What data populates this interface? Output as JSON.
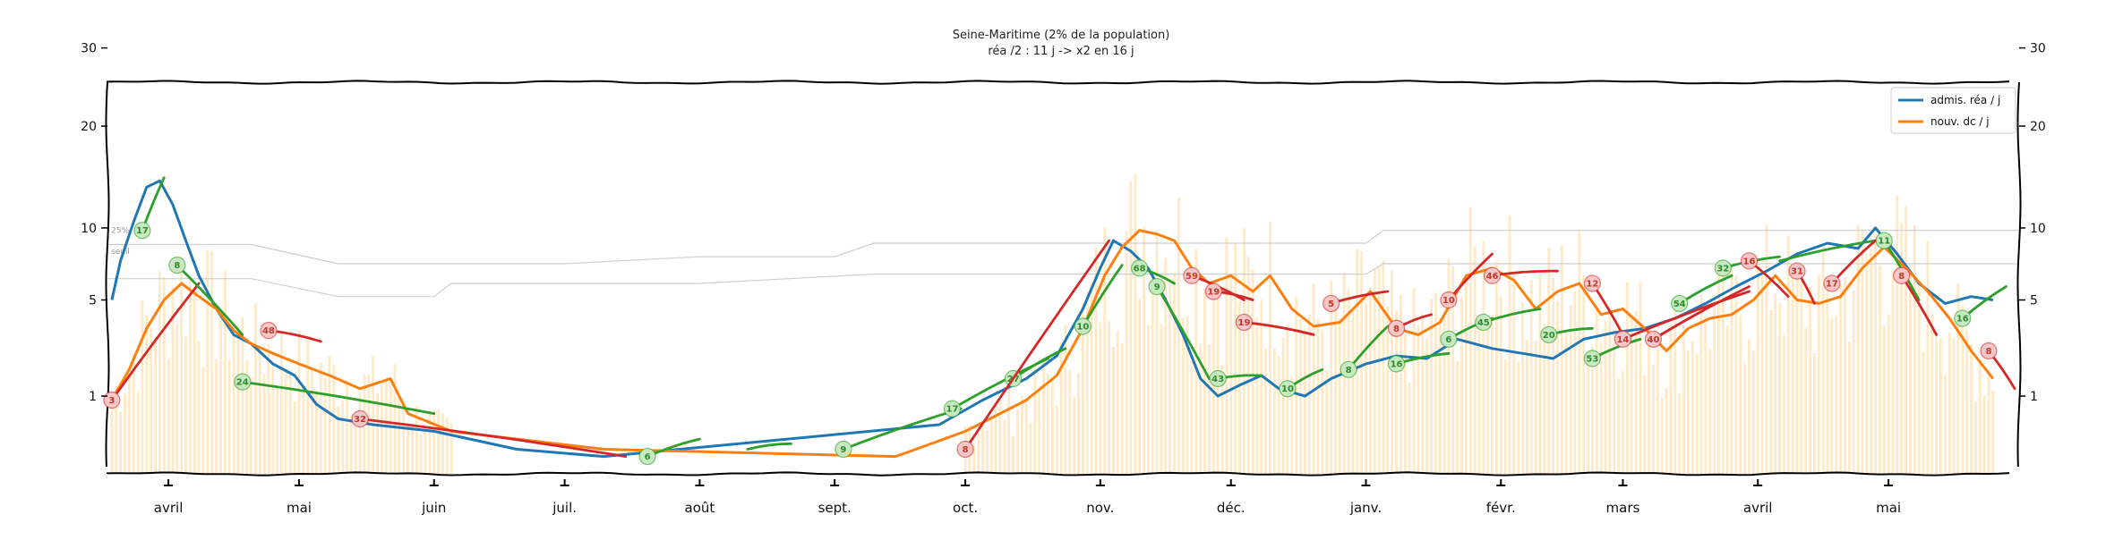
{
  "chart_data": {
    "type": "line",
    "title": "Seine-Maritime (2% de la population)",
    "subtitle": "réa /2 : 11 j -> x2 en 16 j",
    "xlabel": "",
    "ylabel": "",
    "y_scale": "sqrt",
    "ylim": [
      0,
      32
    ],
    "y_ticks": [
      1,
      5,
      10,
      20,
      30
    ],
    "grid": false,
    "legend_position": "top-right",
    "x_range": [
      "2020-03-18",
      "2021-05-31"
    ],
    "month_ticks": [
      {
        "label": "avril",
        "date": "2020-04-01"
      },
      {
        "label": "mai",
        "date": "2020-05-01"
      },
      {
        "label": "juin",
        "date": "2020-06-01"
      },
      {
        "label": "juil.",
        "date": "2020-07-01"
      },
      {
        "label": "août",
        "date": "2020-08-01"
      },
      {
        "label": "sept.",
        "date": "2020-09-01"
      },
      {
        "label": "oct.",
        "date": "2020-10-01"
      },
      {
        "label": "nov.",
        "date": "2020-11-01"
      },
      {
        "label": "déc.",
        "date": "2020-12-01"
      },
      {
        "label": "janv.",
        "date": "2021-01-01"
      },
      {
        "label": "févr.",
        "date": "2021-02-01"
      },
      {
        "label": "mars",
        "date": "2021-03-01"
      },
      {
        "label": "avril",
        "date": "2021-04-01"
      },
      {
        "label": "mai",
        "date": "2021-05-01"
      }
    ],
    "series": [
      {
        "name": "admis. réa / j",
        "color": "#1f77b4",
        "points": [
          [
            "2020-03-19",
            5.0
          ],
          [
            "2020-03-21",
            7.5
          ],
          [
            "2020-03-24",
            10.5
          ],
          [
            "2020-03-27",
            13.6
          ],
          [
            "2020-03-30",
            14.2
          ],
          [
            "2020-04-02",
            12.0
          ],
          [
            "2020-04-05",
            9.0
          ],
          [
            "2020-04-08",
            6.5
          ],
          [
            "2020-04-12",
            4.5
          ],
          [
            "2020-04-16",
            3.2
          ],
          [
            "2020-04-20",
            2.8
          ],
          [
            "2020-04-25",
            2.0
          ],
          [
            "2020-04-30",
            1.6
          ],
          [
            "2020-05-05",
            0.8
          ],
          [
            "2020-05-10",
            0.5
          ],
          [
            "2020-05-18",
            0.4
          ],
          [
            "2020-06-01",
            0.3
          ],
          [
            "2020-06-20",
            0.1
          ],
          [
            "2020-07-10",
            0.05
          ],
          [
            "2020-09-25",
            0.4
          ],
          [
            "2020-10-05",
            0.9
          ],
          [
            "2020-10-15",
            1.5
          ],
          [
            "2020-10-22",
            2.3
          ],
          [
            "2020-10-28",
            4.5
          ],
          [
            "2020-11-01",
            7.0
          ],
          [
            "2020-11-04",
            9.0
          ],
          [
            "2020-11-08",
            8.2
          ],
          [
            "2020-11-12",
            7.0
          ],
          [
            "2020-11-16",
            5.0
          ],
          [
            "2020-11-20",
            3.2
          ],
          [
            "2020-11-24",
            1.5
          ],
          [
            "2020-11-28",
            1.0
          ],
          [
            "2020-12-03",
            1.3
          ],
          [
            "2020-12-08",
            1.6
          ],
          [
            "2020-12-12",
            1.2
          ],
          [
            "2020-12-18",
            1.0
          ],
          [
            "2020-12-24",
            1.5
          ],
          [
            "2021-01-01",
            2.0
          ],
          [
            "2021-01-08",
            2.3
          ],
          [
            "2021-01-15",
            2.2
          ],
          [
            "2021-01-22",
            3.0
          ],
          [
            "2021-01-30",
            2.6
          ],
          [
            "2021-02-06",
            2.4
          ],
          [
            "2021-02-13",
            2.2
          ],
          [
            "2021-02-20",
            3.0
          ],
          [
            "2021-02-27",
            3.3
          ],
          [
            "2021-03-06",
            3.5
          ],
          [
            "2021-03-13",
            4.0
          ],
          [
            "2021-03-20",
            4.8
          ],
          [
            "2021-03-27",
            5.8
          ],
          [
            "2021-04-03",
            6.8
          ],
          [
            "2021-04-10",
            8.0
          ],
          [
            "2021-04-17",
            8.8
          ],
          [
            "2021-04-24",
            8.4
          ],
          [
            "2021-04-28",
            10.0
          ],
          [
            "2021-05-03",
            8.0
          ],
          [
            "2021-05-08",
            6.0
          ],
          [
            "2021-05-14",
            4.8
          ],
          [
            "2021-05-20",
            5.2
          ],
          [
            "2021-05-25",
            5.0
          ]
        ]
      },
      {
        "name": "nouv. dc / j",
        "color": "#ff7f0e",
        "points": [
          [
            "2020-03-19",
            0.9
          ],
          [
            "2020-03-23",
            1.8
          ],
          [
            "2020-03-27",
            3.5
          ],
          [
            "2020-03-31",
            5.0
          ],
          [
            "2020-04-04",
            6.0
          ],
          [
            "2020-04-08",
            5.2
          ],
          [
            "2020-04-12",
            4.5
          ],
          [
            "2020-04-16",
            3.4
          ],
          [
            "2020-04-20",
            2.8
          ],
          [
            "2020-04-25",
            2.4
          ],
          [
            "2020-05-01",
            2.0
          ],
          [
            "2020-05-08",
            1.6
          ],
          [
            "2020-05-15",
            1.2
          ],
          [
            "2020-05-22",
            1.5
          ],
          [
            "2020-05-26",
            0.6
          ],
          [
            "2020-06-05",
            0.3
          ],
          [
            "2020-06-20",
            0.2
          ],
          [
            "2020-07-10",
            0.1
          ],
          [
            "2020-09-15",
            0.05
          ],
          [
            "2020-10-01",
            0.3
          ],
          [
            "2020-10-15",
            0.9
          ],
          [
            "2020-10-22",
            1.6
          ],
          [
            "2020-10-28",
            3.5
          ],
          [
            "2020-11-02",
            6.5
          ],
          [
            "2020-11-06",
            8.5
          ],
          [
            "2020-11-10",
            9.8
          ],
          [
            "2020-11-14",
            9.5
          ],
          [
            "2020-11-18",
            9.0
          ],
          [
            "2020-11-22",
            7.0
          ],
          [
            "2020-11-26",
            6.0
          ],
          [
            "2020-12-01",
            6.5
          ],
          [
            "2020-12-06",
            5.5
          ],
          [
            "2020-12-10",
            6.5
          ],
          [
            "2020-12-15",
            4.5
          ],
          [
            "2020-12-20",
            3.6
          ],
          [
            "2020-12-26",
            3.8
          ],
          [
            "2021-01-02",
            5.5
          ],
          [
            "2021-01-08",
            3.5
          ],
          [
            "2021-01-13",
            3.2
          ],
          [
            "2021-01-18",
            3.8
          ],
          [
            "2021-01-24",
            6.5
          ],
          [
            "2021-01-30",
            7.0
          ],
          [
            "2021-02-04",
            6.2
          ],
          [
            "2021-02-09",
            4.5
          ],
          [
            "2021-02-14",
            5.5
          ],
          [
            "2021-02-19",
            6.0
          ],
          [
            "2021-02-24",
            4.2
          ],
          [
            "2021-03-01",
            4.5
          ],
          [
            "2021-03-06",
            3.5
          ],
          [
            "2021-03-11",
            2.5
          ],
          [
            "2021-03-16",
            3.5
          ],
          [
            "2021-03-21",
            4.0
          ],
          [
            "2021-03-26",
            4.2
          ],
          [
            "2021-03-31",
            5.0
          ],
          [
            "2021-04-05",
            6.5
          ],
          [
            "2021-04-10",
            5.0
          ],
          [
            "2021-04-15",
            4.8
          ],
          [
            "2021-04-20",
            5.2
          ],
          [
            "2021-04-25",
            7.0
          ],
          [
            "2021-04-30",
            8.5
          ],
          [
            "2021-05-05",
            7.0
          ],
          [
            "2021-05-10",
            5.5
          ],
          [
            "2021-05-15",
            4.0
          ],
          [
            "2021-05-20",
            2.5
          ],
          [
            "2021-05-25",
            1.5
          ]
        ]
      }
    ],
    "trend_segments": {
      "growing_color": "#d62728",
      "declining_color": "#2ca02c",
      "segments": [
        {
          "trend": "up",
          "from": [
            "2020-03-19",
            0.9
          ],
          "to": [
            "2020-04-08",
            6.0
          ],
          "label": "3"
        },
        {
          "trend": "down",
          "from": [
            "2020-03-26",
            9.8
          ],
          "to": [
            "2020-03-31",
            14.5
          ],
          "label": "17"
        },
        {
          "trend": "down",
          "from": [
            "2020-04-03",
            7.2
          ],
          "to": [
            "2020-04-18",
            3.2
          ],
          "label": "8"
        },
        {
          "trend": "down",
          "from": [
            "2020-04-18",
            1.4
          ],
          "to": [
            "2020-06-01",
            0.6
          ],
          "label": "24"
        },
        {
          "trend": "up",
          "from": [
            "2020-04-24",
            3.4
          ],
          "to": [
            "2020-05-06",
            2.9
          ],
          "label": "48"
        },
        {
          "trend": "up",
          "from": [
            "2020-05-15",
            0.5
          ],
          "to": [
            "2020-07-15",
            0.05
          ],
          "label": "32"
        },
        {
          "trend": "down",
          "from": [
            "2020-07-20",
            0.05
          ],
          "to": [
            "2020-08-01",
            0.2
          ],
          "label": "6"
        },
        {
          "trend": "down",
          "from": [
            "2020-08-12",
            0.1
          ],
          "to": [
            "2020-08-22",
            0.15
          ],
          "label": ""
        },
        {
          "trend": "down",
          "from": [
            "2020-09-03",
            0.1
          ],
          "to": [
            "2020-09-30",
            0.7
          ],
          "label": "9"
        },
        {
          "trend": "down",
          "from": [
            "2020-09-28",
            0.7
          ],
          "to": [
            "2020-10-20",
            2.2
          ],
          "label": "17"
        },
        {
          "trend": "down",
          "from": [
            "2020-10-12",
            1.5
          ],
          "to": [
            "2020-10-24",
            2.6
          ],
          "label": "27"
        },
        {
          "trend": "up",
          "from": [
            "2020-10-01",
            0.1
          ],
          "to": [
            "2020-11-03",
            9.0
          ],
          "label": "8"
        },
        {
          "trend": "down",
          "from": [
            "2020-10-28",
            3.6
          ],
          "to": [
            "2020-11-06",
            7.2
          ],
          "label": "10"
        },
        {
          "trend": "down",
          "from": [
            "2020-11-10",
            7.0
          ],
          "to": [
            "2020-11-18",
            6.0
          ],
          "label": "68"
        },
        {
          "trend": "down",
          "from": [
            "2020-11-14",
            5.8
          ],
          "to": [
            "2020-11-26",
            1.5
          ],
          "label": "9"
        },
        {
          "trend": "up",
          "from": [
            "2020-11-22",
            6.5
          ],
          "to": [
            "2020-12-04",
            5.0
          ],
          "label": "59"
        },
        {
          "trend": "up",
          "from": [
            "2020-11-27",
            5.5
          ],
          "to": [
            "2020-12-06",
            5.0
          ],
          "label": "19"
        },
        {
          "trend": "down",
          "from": [
            "2020-11-28",
            1.5
          ],
          "to": [
            "2020-12-08",
            1.6
          ],
          "label": "43"
        },
        {
          "trend": "up",
          "from": [
            "2020-12-04",
            3.8
          ],
          "to": [
            "2020-12-20",
            3.2
          ],
          "label": "19"
        },
        {
          "trend": "down",
          "from": [
            "2020-12-14",
            1.2
          ],
          "to": [
            "2020-12-22",
            1.8
          ],
          "label": "10"
        },
        {
          "trend": "up",
          "from": [
            "2020-12-24",
            4.8
          ],
          "to": [
            "2021-01-06",
            5.5
          ],
          "label": "5"
        },
        {
          "trend": "down",
          "from": [
            "2020-12-28",
            1.8
          ],
          "to": [
            "2021-01-06",
            3.6
          ],
          "label": "8"
        },
        {
          "trend": "up",
          "from": [
            "2021-01-08",
            3.5
          ],
          "to": [
            "2021-01-16",
            4.2
          ],
          "label": "8"
        },
        {
          "trend": "down",
          "from": [
            "2021-01-08",
            2.0
          ],
          "to": [
            "2021-01-20",
            2.4
          ],
          "label": "16"
        },
        {
          "trend": "up",
          "from": [
            "2021-01-20",
            5.0
          ],
          "to": [
            "2021-01-30",
            8.0
          ],
          "label": "10"
        },
        {
          "trend": "down",
          "from": [
            "2021-01-20",
            3.0
          ],
          "to": [
            "2021-01-30",
            4.0
          ],
          "label": "6"
        },
        {
          "trend": "down",
          "from": [
            "2021-01-28",
            3.8
          ],
          "to": [
            "2021-02-10",
            4.5
          ],
          "label": "45"
        },
        {
          "trend": "up",
          "from": [
            "2021-01-30",
            6.5
          ],
          "to": [
            "2021-02-14",
            6.8
          ],
          "label": "46"
        },
        {
          "trend": "down",
          "from": [
            "2021-02-12",
            3.2
          ],
          "to": [
            "2021-02-22",
            3.5
          ],
          "label": "20"
        },
        {
          "trend": "up",
          "from": [
            "2021-02-22",
            6.0
          ],
          "to": [
            "2021-03-01",
            3.2
          ],
          "label": "12"
        },
        {
          "trend": "down",
          "from": [
            "2021-02-22",
            2.2
          ],
          "to": [
            "2021-03-05",
            3.0
          ],
          "label": "53"
        },
        {
          "trend": "up",
          "from": [
            "2021-03-01",
            3.0
          ],
          "to": [
            "2021-03-30",
            5.5
          ],
          "label": "14"
        },
        {
          "trend": "up",
          "from": [
            "2021-03-08",
            3.0
          ],
          "to": [
            "2021-03-30",
            5.8
          ],
          "label": "40"
        },
        {
          "trend": "down",
          "from": [
            "2021-03-14",
            4.8
          ],
          "to": [
            "2021-03-26",
            6.5
          ],
          "label": "54"
        },
        {
          "trend": "down",
          "from": [
            "2021-03-24",
            7.0
          ],
          "to": [
            "2021-04-06",
            7.8
          ],
          "label": "32"
        },
        {
          "trend": "up",
          "from": [
            "2021-03-30",
            7.5
          ],
          "to": [
            "2021-04-08",
            5.2
          ],
          "label": "16"
        },
        {
          "trend": "up",
          "from": [
            "2021-04-10",
            6.8
          ],
          "to": [
            "2021-04-14",
            4.8
          ],
          "label": "31"
        },
        {
          "trend": "down",
          "from": [
            "2021-04-06",
            7.5
          ],
          "to": [
            "2021-04-28",
            9.0
          ],
          "label": ""
        },
        {
          "trend": "up",
          "from": [
            "2021-04-18",
            6.0
          ],
          "to": [
            "2021-04-28",
            9.0
          ],
          "label": "17"
        },
        {
          "trend": "down",
          "from": [
            "2021-04-30",
            9.0
          ],
          "to": [
            "2021-05-08",
            5.0
          ],
          "label": "11"
        },
        {
          "trend": "up",
          "from": [
            "2021-05-04",
            6.5
          ],
          "to": [
            "2021-05-12",
            3.2
          ],
          "label": "8"
        },
        {
          "trend": "down",
          "from": [
            "2021-05-18",
            4.0
          ],
          "to": [
            "2021-05-28",
            5.8
          ],
          "label": "16"
        },
        {
          "trend": "up",
          "from": [
            "2021-05-24",
            2.5
          ],
          "to": [
            "2021-05-30",
            1.2
          ],
          "label": "8"
        }
      ]
    },
    "threshold_labels": [
      "25%",
      "seuil"
    ],
    "background_bars_color": "#ffe9c7"
  }
}
